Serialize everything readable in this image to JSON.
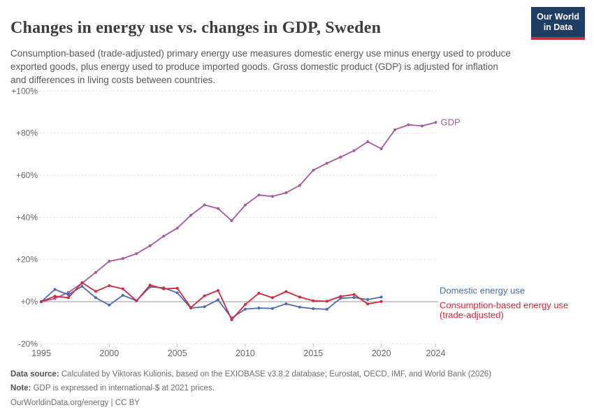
{
  "header": {
    "title": "Changes in energy use vs. changes in GDP, Sweden",
    "subtitle": "Consumption-based (trade-adjusted) primary energy use measures domestic energy use minus energy used to produce exported goods, plus energy used to produce imported goods. Gross domestic product (GDP) is adjusted for inflation and differences in living costs between countries.",
    "logo": {
      "line1": "Our World",
      "line2": "in Data",
      "bg_color": "#1d3d63",
      "bar_color": "#c22f43"
    }
  },
  "chart_data": {
    "type": "line",
    "title": "Changes in energy use vs. changes in GDP, Sweden",
    "xlabel": "",
    "ylabel": "",
    "xlim": [
      1995,
      2024
    ],
    "ylim": [
      -20,
      100
    ],
    "grid": "horizontal-dashed",
    "legend_position": "end-of-line-labels",
    "x_ticks": [
      1995,
      2000,
      2005,
      2010,
      2015,
      2020,
      2024
    ],
    "y_ticks": [
      {
        "label": "+100%",
        "value": 100
      },
      {
        "label": "+80%",
        "value": 80
      },
      {
        "label": "+60%",
        "value": 60
      },
      {
        "label": "+40%",
        "value": 40
      },
      {
        "label": "+20%",
        "value": 20
      },
      {
        "label": "+0%",
        "value": 0
      },
      {
        "label": "-20%",
        "value": -20
      }
    ],
    "series": [
      {
        "name": "GDP",
        "label_lines": [
          "GDP"
        ],
        "color": "#a6599f",
        "start_year": 1995,
        "values": [
          0,
          1.5,
          4.4,
          8.8,
          13.9,
          19.2,
          20.5,
          22.8,
          26.5,
          31.1,
          34.9,
          41.0,
          45.9,
          44.2,
          38.4,
          45.9,
          50.6,
          50.0,
          51.7,
          55.2,
          62.4,
          65.7,
          68.6,
          71.7,
          75.9,
          72.6,
          81.6,
          84.0,
          83.4,
          85.1
        ]
      },
      {
        "name": "Domestic energy use",
        "label_lines": [
          "Domestic energy use"
        ],
        "color": "#4b6cb0",
        "start_year": 1995,
        "values": [
          0,
          5.8,
          3.3,
          7.3,
          1.9,
          -1.6,
          3.0,
          0.5,
          7.0,
          6.6,
          4.2,
          -3.0,
          -2.4,
          0.9,
          -7.8,
          -3.5,
          -3.0,
          -3.2,
          -1.0,
          -2.6,
          -3.3,
          -3.6,
          1.6,
          2.0,
          1.0,
          2.2
        ]
      },
      {
        "name": "Consumption-based energy use (trade-adjusted)",
        "label_lines": [
          "Consumption-based energy use",
          "(trade-adjusted)"
        ],
        "color": "#d1283c",
        "start_year": 1995,
        "values": [
          0,
          2.6,
          1.9,
          9.0,
          4.9,
          7.6,
          6.1,
          0.4,
          7.9,
          6.1,
          6.4,
          -2.8,
          2.8,
          5.3,
          -8.6,
          -1.3,
          4.0,
          1.9,
          4.8,
          2.2,
          0.4,
          0.2,
          2.5,
          3.4,
          -1.1,
          0.1
        ]
      }
    ]
  },
  "footer": {
    "source_label": "Data source:",
    "source_text": " Calculated by Viktoras Kulionis, based on the EXIOBASE v3.8.2 database; Eurostat, OECD, IMF, and World Bank (2026)",
    "note_label": "Note:",
    "note_text": " GDP is expressed in international-$ at 2021 prices.",
    "link_text": "OurWorldinData.org/energy | CC BY"
  }
}
